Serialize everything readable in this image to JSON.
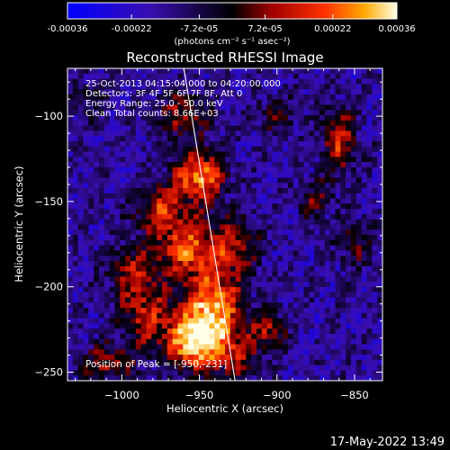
{
  "colorbar": {
    "ticks": [
      "-0.00036",
      "-0.00022",
      "-7.2e-05",
      "7.2e-05",
      "0.00022",
      "0.00036"
    ],
    "tick_values": [
      -0.00036,
      -0.00022,
      -7.2e-05,
      7.2e-05,
      0.00022,
      0.00036
    ],
    "range": [
      -0.00036,
      0.00036
    ],
    "units": "(photons cm⁻² s⁻¹ asec⁻²)"
  },
  "chart_data": {
    "type": "heatmap",
    "title": "Reconstructed RHESSI Image",
    "xlabel": "Heliocentric X (arcsec)",
    "ylabel": "Heliocentric Y (arcsec)",
    "xlim": [
      -1035,
      -832
    ],
    "ylim": [
      -255,
      -72
    ],
    "xticks": [
      -1000,
      -950,
      -900,
      -850
    ],
    "yticks": [
      -100,
      -150,
      -200,
      -250
    ],
    "info_lines": [
      "25-Oct-2013 04:15:04.000 to 04:20:00.000",
      "Detectors: 3F 4F 5F 6F 7F 8F, Att 0",
      "Energy Range: 25.0 - 50.0 keV",
      "Clean    Total counts: 8.66E+03"
    ],
    "peak_label": "Position of Peak = [-950,-231]",
    "peak_xy": [
      -950,
      -231
    ],
    "limb_line": [
      [
        -960,
        -72
      ],
      [
        -927,
        -255
      ]
    ],
    "sources": [
      {
        "x": -952,
        "y": -232,
        "amp": 1.0,
        "sx": 14,
        "sy": 12
      },
      {
        "x": -940,
        "y": -210,
        "amp": 0.75,
        "sx": 13,
        "sy": 13
      },
      {
        "x": -955,
        "y": -178,
        "amp": 0.7,
        "sx": 16,
        "sy": 12
      },
      {
        "x": -950,
        "y": -135,
        "amp": 0.8,
        "sx": 12,
        "sy": 10
      },
      {
        "x": -975,
        "y": -155,
        "amp": 0.55,
        "sx": 12,
        "sy": 10
      },
      {
        "x": -985,
        "y": -215,
        "amp": 0.5,
        "sx": 12,
        "sy": 14
      },
      {
        "x": -1010,
        "y": -245,
        "amp": 0.45,
        "sx": 12,
        "sy": 8
      },
      {
        "x": -960,
        "y": -100,
        "amp": 0.45,
        "sx": 12,
        "sy": 10
      },
      {
        "x": -995,
        "y": -190,
        "amp": 0.4,
        "sx": 10,
        "sy": 10
      },
      {
        "x": -925,
        "y": -175,
        "amp": 0.4,
        "sx": 10,
        "sy": 12
      },
      {
        "x": -925,
        "y": -240,
        "amp": 0.35,
        "sx": 10,
        "sy": 10
      },
      {
        "x": -860,
        "y": -115,
        "amp": 0.55,
        "sx": 8,
        "sy": 14
      },
      {
        "x": -905,
        "y": -225,
        "amp": 0.45,
        "sx": 8,
        "sy": 8
      },
      {
        "x": -850,
        "y": -175,
        "amp": 0.3,
        "sx": 8,
        "sy": 10
      },
      {
        "x": -900,
        "y": -100,
        "amp": 0.3,
        "sx": 10,
        "sy": 8
      },
      {
        "x": -1020,
        "y": -90,
        "amp": 0.25,
        "sx": 8,
        "sy": 8
      },
      {
        "x": -875,
        "y": -150,
        "amp": 0.35,
        "sx": 8,
        "sy": 8
      }
    ]
  },
  "timestamp": "17-May-2022 13:49"
}
